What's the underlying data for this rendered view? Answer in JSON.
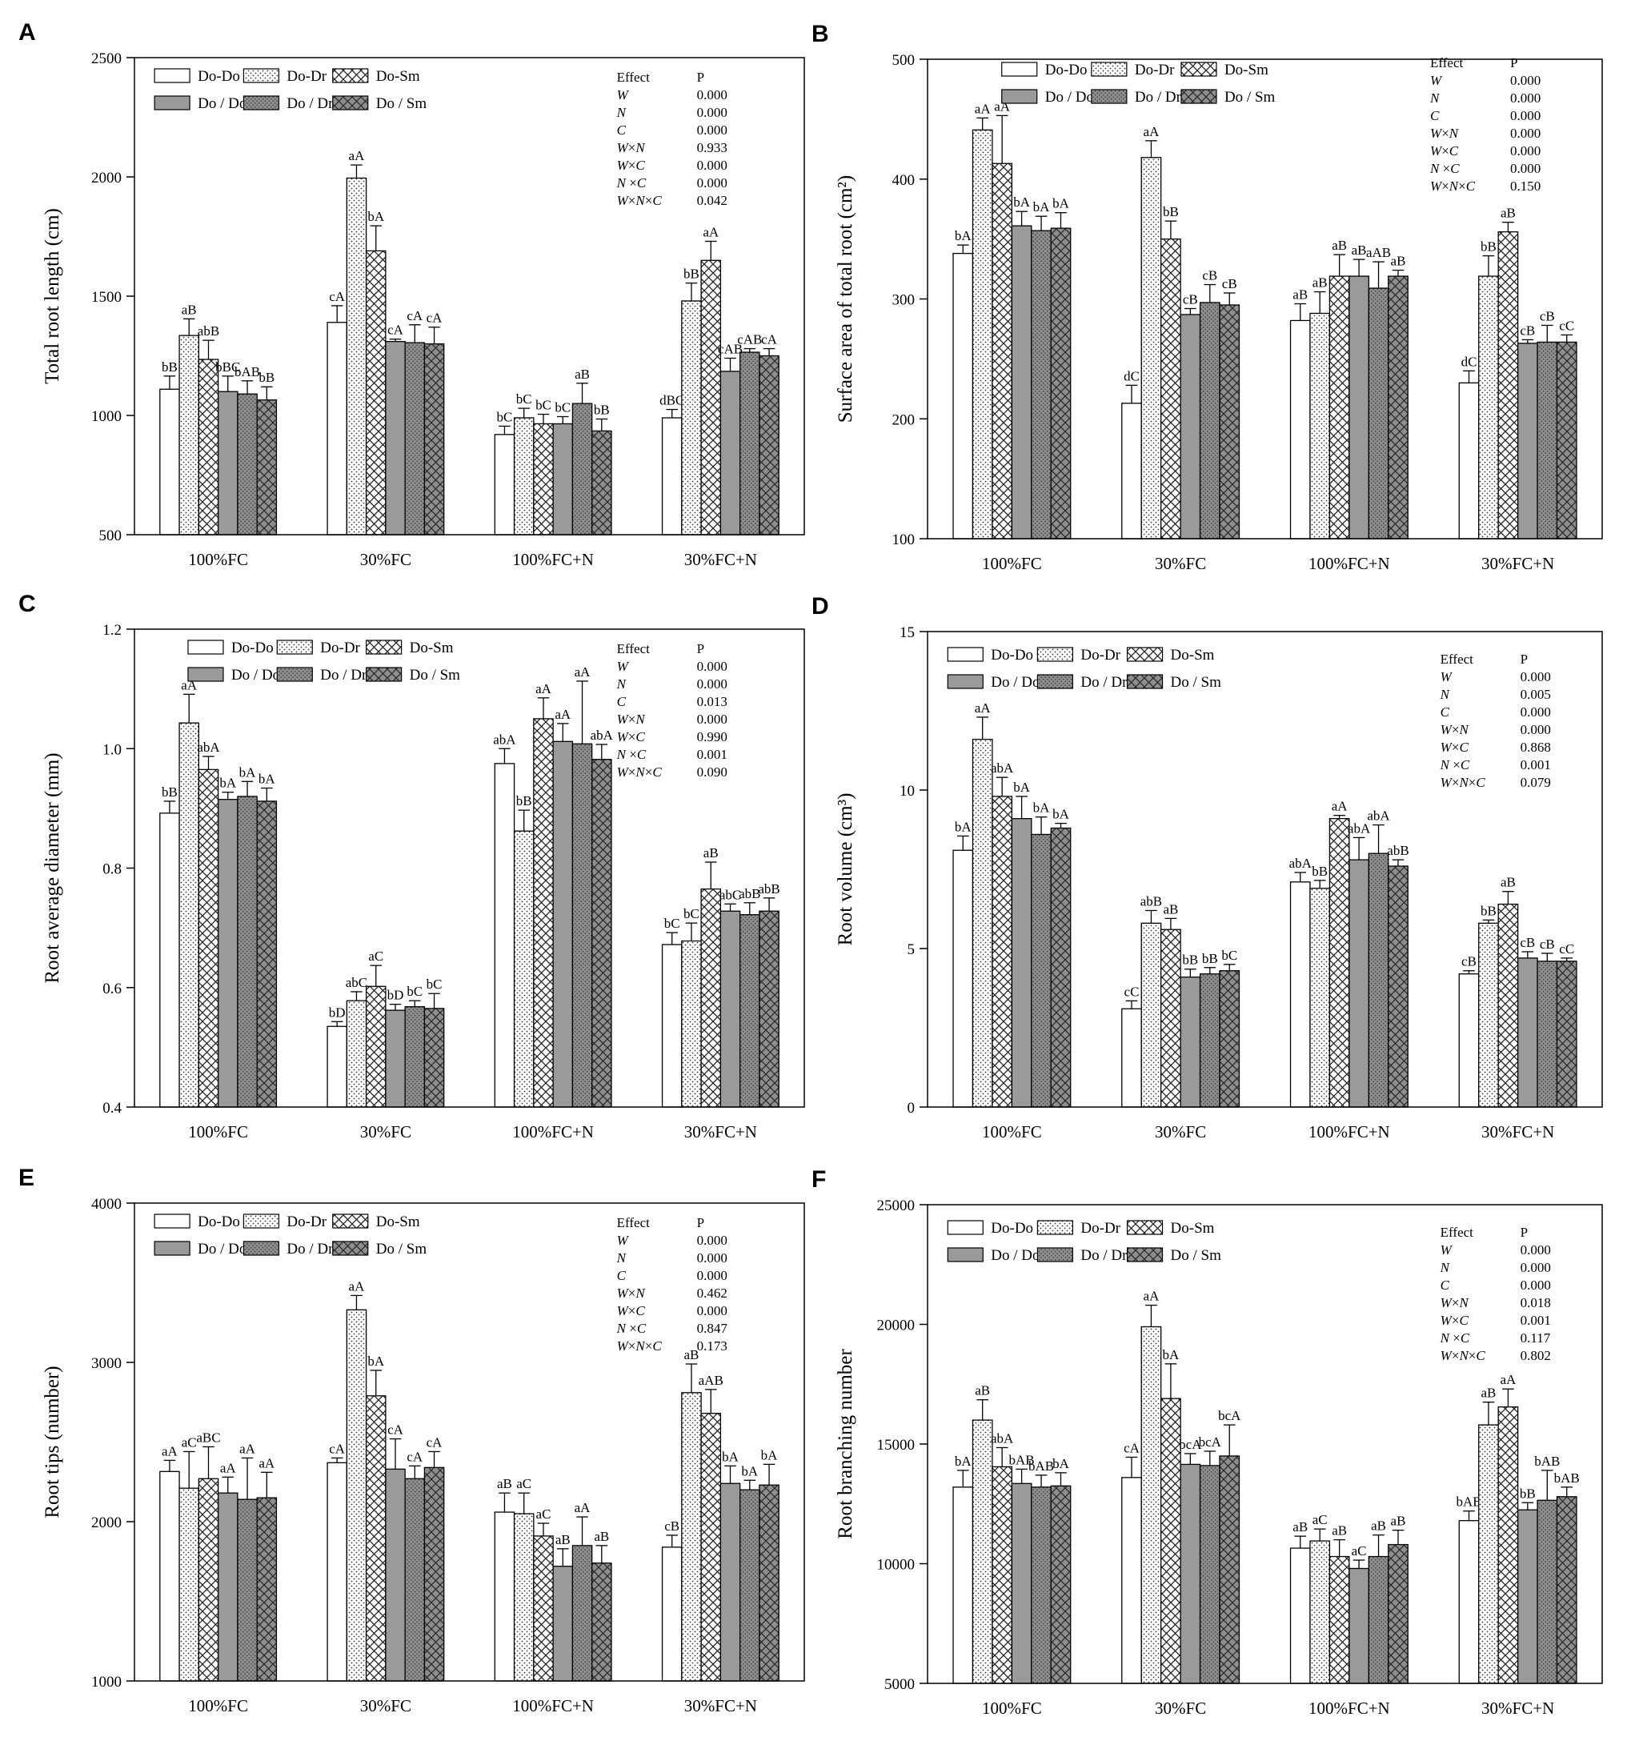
{
  "figure": {
    "legend_labels": [
      "Do-Do",
      "Do-Dr",
      "Do-Sm",
      "Do / Do",
      "Do / Dr",
      "Do / Sm"
    ],
    "effect_header": "Effect",
    "p_header": "P",
    "colors": {
      "axis": "#000000",
      "solid_fill": "#9a9a9a",
      "white_fill": "#ffffff"
    }
  },
  "chart_data": [
    {
      "panel": "A",
      "type": "bar",
      "ylabel": "Total root length (cm)",
      "ylim": [
        500,
        2500
      ],
      "yticks": [
        500,
        1000,
        1500,
        2000,
        2500
      ],
      "categories": [
        "100%FC",
        "30%FC",
        "100%FC+N",
        "30%FC+N"
      ],
      "series": [
        {
          "name": "Do-Do",
          "values": [
            1110,
            1390,
            920,
            990
          ],
          "errors": [
            55,
            70,
            35,
            35
          ],
          "labels": [
            "bB",
            "cA",
            "bC",
            "dBC"
          ]
        },
        {
          "name": "Do-Dr",
          "values": [
            1335,
            1995,
            990,
            1480
          ],
          "errors": [
            70,
            55,
            40,
            75
          ],
          "labels": [
            "aB",
            "aA",
            "bC",
            "bB"
          ]
        },
        {
          "name": "Do-Sm",
          "values": [
            1235,
            1690,
            965,
            1650
          ],
          "errors": [
            80,
            105,
            40,
            80
          ],
          "labels": [
            "abB",
            "bA",
            "bC",
            "aA"
          ]
        },
        {
          "name": "Do / Do",
          "values": [
            1100,
            1310,
            965,
            1185
          ],
          "errors": [
            65,
            10,
            30,
            55
          ],
          "labels": [
            "bBC",
            "cA",
            "bC",
            "cAB"
          ]
        },
        {
          "name": "Do / Dr",
          "values": [
            1090,
            1305,
            1050,
            1265
          ],
          "errors": [
            55,
            75,
            85,
            15
          ],
          "labels": [
            "bAB",
            "cA",
            "aB",
            "cAB"
          ]
        },
        {
          "name": "Do / Sm",
          "values": [
            1065,
            1300,
            935,
            1250
          ],
          "errors": [
            55,
            70,
            50,
            30
          ],
          "labels": [
            "bB",
            "cA",
            "bB",
            "cA"
          ]
        }
      ],
      "stats": [
        {
          "effect": "W",
          "p": "0.000"
        },
        {
          "effect": "N",
          "p": "0.000"
        },
        {
          "effect": "C",
          "p": "0.000"
        },
        {
          "effect": "W×N",
          "p": "0.933"
        },
        {
          "effect": "W×C",
          "p": "0.000"
        },
        {
          "effect": "N ×C",
          "p": "0.000"
        },
        {
          "effect": "W×N×C",
          "p": "0.042"
        }
      ]
    },
    {
      "panel": "B",
      "type": "bar",
      "ylabel": "Surface area of total root (cm²)",
      "ylim": [
        100,
        500
      ],
      "yticks": [
        100,
        200,
        300,
        400,
        500
      ],
      "categories": [
        "100%FC",
        "30%FC",
        "100%FC+N",
        "30%FC+N"
      ],
      "series": [
        {
          "name": "Do-Do",
          "values": [
            338,
            213,
            282,
            230
          ],
          "errors": [
            7,
            15,
            14,
            10
          ],
          "labels": [
            "bA",
            "dC",
            "aB",
            "dC"
          ]
        },
        {
          "name": "Do-Dr",
          "values": [
            441,
            418,
            288,
            319
          ],
          "errors": [
            10,
            14,
            18,
            17
          ],
          "labels": [
            "aA",
            "aA",
            "aB",
            "bB"
          ]
        },
        {
          "name": "Do-Sm",
          "values": [
            413,
            350,
            319,
            356
          ],
          "errors": [
            40,
            15,
            18,
            8
          ],
          "labels": [
            "aA",
            "bB",
            "aB",
            "aB"
          ]
        },
        {
          "name": "Do / Do",
          "values": [
            361,
            287,
            319,
            263
          ],
          "errors": [
            12,
            5,
            14,
            3
          ],
          "labels": [
            "bA",
            "cB",
            "aB",
            "cB"
          ]
        },
        {
          "name": "Do / Dr",
          "values": [
            357,
            297,
            309,
            264
          ],
          "errors": [
            12,
            15,
            22,
            14
          ],
          "labels": [
            "bA",
            "cB",
            "aAB",
            "cB"
          ]
        },
        {
          "name": "Do / Sm",
          "values": [
            359,
            295,
            319,
            264
          ],
          "errors": [
            13,
            10,
            5,
            6
          ],
          "labels": [
            "bA",
            "cB",
            "aB",
            "cC"
          ]
        }
      ],
      "stats": [
        {
          "effect": "W",
          "p": "0.000"
        },
        {
          "effect": "N",
          "p": "0.000"
        },
        {
          "effect": "C",
          "p": "0.000"
        },
        {
          "effect": "W×N",
          "p": "0.000"
        },
        {
          "effect": "W×C",
          "p": "0.000"
        },
        {
          "effect": "N ×C",
          "p": "0.000"
        },
        {
          "effect": "W×N×C",
          "p": "0.150"
        }
      ]
    },
    {
      "panel": "C",
      "type": "bar",
      "ylabel": "Root average diameter (mm)",
      "ylim": [
        0.4,
        1.2
      ],
      "yticks": [
        0.4,
        0.6,
        0.8,
        1.0,
        1.2
      ],
      "categories": [
        "100%FC",
        "30%FC",
        "100%FC+N",
        "30%FC+N"
      ],
      "series": [
        {
          "name": "Do-Do",
          "values": [
            0.892,
            0.535,
            0.975,
            0.672
          ],
          "errors": [
            0.02,
            0.008,
            0.025,
            0.02
          ],
          "labels": [
            "bB",
            "bD",
            "abA",
            "bC"
          ]
        },
        {
          "name": "Do-Dr",
          "values": [
            1.043,
            0.578,
            0.862,
            0.678
          ],
          "errors": [
            0.048,
            0.015,
            0.035,
            0.03
          ],
          "labels": [
            "aA",
            "abC",
            "bB",
            "bC"
          ]
        },
        {
          "name": "Do-Sm",
          "values": [
            0.965,
            0.602,
            1.05,
            0.765
          ],
          "errors": [
            0.022,
            0.035,
            0.035,
            0.045
          ],
          "labels": [
            "abA",
            "aC",
            "aA",
            "aB"
          ]
        },
        {
          "name": "Do / Do",
          "values": [
            0.915,
            0.562,
            1.012,
            0.728
          ],
          "errors": [
            0.012,
            0.01,
            0.03,
            0.012
          ],
          "labels": [
            "bA",
            "bD",
            "aA",
            "abC"
          ]
        },
        {
          "name": "Do / Dr",
          "values": [
            0.92,
            0.568,
            1.008,
            0.722
          ],
          "errors": [
            0.025,
            0.01,
            0.105,
            0.02
          ],
          "labels": [
            "bA",
            "bC",
            "aA",
            "abB"
          ]
        },
        {
          "name": "Do / Sm",
          "values": [
            0.912,
            0.565,
            0.982,
            0.728
          ],
          "errors": [
            0.022,
            0.025,
            0.025,
            0.022
          ],
          "labels": [
            "bA",
            "bC",
            "abA",
            "abB"
          ]
        }
      ],
      "stats": [
        {
          "effect": "W",
          "p": "0.000"
        },
        {
          "effect": "N",
          "p": "0.000"
        },
        {
          "effect": "C",
          "p": "0.013"
        },
        {
          "effect": "W×N",
          "p": "0.000"
        },
        {
          "effect": "W×C",
          "p": "0.990"
        },
        {
          "effect": "N ×C",
          "p": "0.001"
        },
        {
          "effect": "W×N×C",
          "p": "0.090"
        }
      ]
    },
    {
      "panel": "D",
      "type": "bar",
      "ylabel": "Root volume (cm³)",
      "ylim": [
        0,
        15
      ],
      "yticks": [
        0,
        5,
        10,
        15
      ],
      "categories": [
        "100%FC",
        "30%FC",
        "100%FC+N",
        "30%FC+N"
      ],
      "series": [
        {
          "name": "Do-Do",
          "values": [
            8.1,
            3.1,
            7.1,
            4.2
          ],
          "errors": [
            0.45,
            0.25,
            0.3,
            0.1
          ],
          "labels": [
            "bA",
            "cC",
            "abA",
            "cB"
          ]
        },
        {
          "name": "Do-Dr",
          "values": [
            11.6,
            5.8,
            6.9,
            5.8
          ],
          "errors": [
            0.7,
            0.4,
            0.25,
            0.1
          ],
          "labels": [
            "aA",
            "abB",
            "bB",
            "bB"
          ]
        },
        {
          "name": "Do-Sm",
          "values": [
            9.8,
            5.6,
            9.1,
            6.4
          ],
          "errors": [
            0.6,
            0.35,
            0.1,
            0.4
          ],
          "labels": [
            "abA",
            "aB",
            "aA",
            "aB"
          ]
        },
        {
          "name": "Do / Do",
          "values": [
            9.1,
            4.1,
            7.8,
            4.7
          ],
          "errors": [
            0.7,
            0.25,
            0.7,
            0.2
          ],
          "labels": [
            "bA",
            "bB",
            "abA",
            "cB"
          ]
        },
        {
          "name": "Do / Dr",
          "values": [
            8.6,
            4.2,
            8.0,
            4.6
          ],
          "errors": [
            0.55,
            0.2,
            0.9,
            0.25
          ],
          "labels": [
            "bA",
            "bB",
            "abA",
            "cB"
          ]
        },
        {
          "name": "Do / Sm",
          "values": [
            8.8,
            4.3,
            7.6,
            4.6
          ],
          "errors": [
            0.15,
            0.2,
            0.2,
            0.1
          ],
          "labels": [
            "bA",
            "bC",
            "abB",
            "cC"
          ]
        }
      ],
      "stats": [
        {
          "effect": "W",
          "p": "0.000"
        },
        {
          "effect": "N",
          "p": "0.005"
        },
        {
          "effect": "C",
          "p": "0.000"
        },
        {
          "effect": "W×N",
          "p": "0.000"
        },
        {
          "effect": "W×C",
          "p": "0.868"
        },
        {
          "effect": "N ×C",
          "p": "0.001"
        },
        {
          "effect": "W×N×C",
          "p": "0.079"
        }
      ]
    },
    {
      "panel": "E",
      "type": "bar",
      "ylabel": "Root tips (number)",
      "ylim": [
        1000,
        4000
      ],
      "yticks": [
        1000,
        2000,
        3000,
        4000
      ],
      "categories": [
        "100%FC",
        "30%FC",
        "100%FC+N",
        "30%FC+N"
      ],
      "series": [
        {
          "name": "Do-Do",
          "values": [
            2315,
            2370,
            2060,
            1840
          ],
          "errors": [
            70,
            30,
            120,
            75
          ],
          "labels": [
            "aA",
            "cA",
            "aB",
            "cB"
          ]
        },
        {
          "name": "Do-Dr",
          "values": [
            2210,
            3330,
            2050,
            2810
          ],
          "errors": [
            230,
            90,
            130,
            180
          ],
          "labels": [
            "aC",
            "aA",
            "aC",
            "aB"
          ]
        },
        {
          "name": "Do-Sm",
          "values": [
            2270,
            2790,
            1910,
            2680
          ],
          "errors": [
            200,
            160,
            80,
            150
          ],
          "labels": [
            "aBC",
            "bA",
            "aC",
            "aAB"
          ]
        },
        {
          "name": "Do / Do",
          "values": [
            2180,
            2330,
            1720,
            2240
          ],
          "errors": [
            100,
            190,
            110,
            110
          ],
          "labels": [
            "aA",
            "cA",
            "aB",
            "bA"
          ]
        },
        {
          "name": "Do / Dr",
          "values": [
            2140,
            2270,
            1850,
            2200
          ],
          "errors": [
            260,
            80,
            180,
            60
          ],
          "labels": [
            "aA",
            "cA",
            "aA",
            "bA"
          ]
        },
        {
          "name": "Do / Sm",
          "values": [
            2150,
            2340,
            1740,
            2230
          ],
          "errors": [
            160,
            100,
            110,
            130
          ],
          "labels": [
            "aA",
            "cA",
            "aB",
            "bA"
          ]
        }
      ],
      "stats": [
        {
          "effect": "W",
          "p": "0.000"
        },
        {
          "effect": "N",
          "p": "0.000"
        },
        {
          "effect": "C",
          "p": "0.000"
        },
        {
          "effect": "W×N",
          "p": "0.462"
        },
        {
          "effect": "W×C",
          "p": "0.000"
        },
        {
          "effect": "N ×C",
          "p": "0.847"
        },
        {
          "effect": "W×N×C",
          "p": "0.173"
        }
      ]
    },
    {
      "panel": "F",
      "type": "bar",
      "ylabel": "Root branching number",
      "ylim": [
        5000,
        25000
      ],
      "yticks": [
        5000,
        10000,
        15000,
        20000,
        25000
      ],
      "categories": [
        "100%FC",
        "30%FC",
        "100%FC+N",
        "30%FC+N"
      ],
      "series": [
        {
          "name": "Do-Do",
          "values": [
            13200,
            13600,
            10650,
            11800
          ],
          "errors": [
            700,
            850,
            500,
            400
          ],
          "labels": [
            "bA",
            "cA",
            "aB",
            "bAB"
          ]
        },
        {
          "name": "Do-Dr",
          "values": [
            16000,
            19900,
            10950,
            15800
          ],
          "errors": [
            850,
            900,
            500,
            950
          ],
          "labels": [
            "aB",
            "aA",
            "aC",
            "aB"
          ]
        },
        {
          "name": "Do-Sm",
          "values": [
            14050,
            16900,
            10300,
            16550
          ],
          "errors": [
            800,
            1450,
            700,
            750
          ],
          "labels": [
            "abA",
            "bA",
            "aB",
            "aA"
          ]
        },
        {
          "name": "Do / Do",
          "values": [
            13350,
            14150,
            9800,
            12250
          ],
          "errors": [
            600,
            450,
            350,
            300
          ],
          "labels": [
            "bAB",
            "bcA",
            "aC",
            "bB"
          ]
        },
        {
          "name": "Do / Dr",
          "values": [
            13200,
            14100,
            10300,
            12650
          ],
          "errors": [
            500,
            600,
            900,
            1250
          ],
          "labels": [
            "bAB",
            "bcA",
            "aB",
            "bAB"
          ]
        },
        {
          "name": "Do / Sm",
          "values": [
            13250,
            14500,
            10800,
            12800
          ],
          "errors": [
            550,
            1300,
            600,
            400
          ],
          "labels": [
            "bA",
            "bcA",
            "aB",
            "bAB"
          ]
        }
      ],
      "stats": [
        {
          "effect": "W",
          "p": "0.000"
        },
        {
          "effect": "N",
          "p": "0.000"
        },
        {
          "effect": "C",
          "p": "0.000"
        },
        {
          "effect": "W×N",
          "p": "0.018"
        },
        {
          "effect": "W×C",
          "p": "0.001"
        },
        {
          "effect": "N ×C",
          "p": "0.117"
        },
        {
          "effect": "W×N×C",
          "p": "0.802"
        }
      ]
    }
  ]
}
